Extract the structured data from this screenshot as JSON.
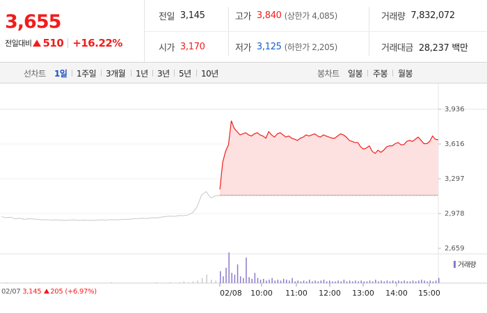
{
  "quote": {
    "price": "3,655",
    "change_label": "전일대비",
    "change_amount": "510",
    "change_rate": "+16.22%",
    "prev_close_label": "전일",
    "prev_close": "3,145",
    "open_label": "시가",
    "open": "3,170",
    "high_label": "고가",
    "high": "3,840",
    "upper_limit": "(상한가 4,085)",
    "low_label": "저가",
    "low": "3,125",
    "lower_limit": "(하한가 2,205)",
    "volume_label": "거래량",
    "volume": "7,832,072",
    "amount_label": "거래대금",
    "amount": "28,237 백만"
  },
  "toolbar": {
    "line_label": "선차트",
    "line_periods": [
      "1일",
      "1주일",
      "3개월",
      "1년",
      "3년",
      "5년",
      "10년"
    ],
    "active_period": "1일",
    "candle_label": "봉차트",
    "candle_periods": [
      "일봉",
      "주봉",
      "월봉"
    ]
  },
  "colors": {
    "up": "#f21c1c",
    "down": "#1361d0",
    "prev_day_line": "#c8c8c8",
    "today_fill": "#fde0e0",
    "volume": "#8a78c9"
  },
  "chart_data": {
    "type": "line",
    "ylim": [
      2659,
      3936
    ],
    "y_ticks": [
      "3,936",
      "3,616",
      "3,297",
      "2,978",
      "2,659"
    ],
    "x_tick_labels": [
      "02/08",
      "10:00",
      "11:00",
      "12:00",
      "13:00",
      "14:00",
      "15:00"
    ],
    "reference_price": 3145,
    "series": [
      {
        "x": [
          "09:00",
          "09:05",
          "09:10",
          "09:15",
          "09:20",
          "09:25",
          "09:30",
          "09:35",
          "09:40",
          "09:45",
          "09:50",
          "09:55",
          "10:00",
          "10:05",
          "10:10",
          "10:15",
          "10:20",
          "10:25",
          "10:30",
          "10:35",
          "10:40",
          "10:45",
          "10:50",
          "10:55",
          "11:00",
          "11:05",
          "11:10",
          "11:15",
          "11:20",
          "11:25",
          "11:30",
          "11:35",
          "11:40",
          "11:45",
          "11:50",
          "11:55",
          "12:00",
          "12:05",
          "12:10",
          "12:15",
          "12:20",
          "12:25",
          "12:30",
          "12:35",
          "12:40",
          "12:45",
          "12:50",
          "12:55",
          "13:00",
          "13:05",
          "13:10",
          "13:15",
          "13:20",
          "13:25",
          "13:30",
          "13:35",
          "13:40",
          "13:45",
          "13:50",
          "13:55",
          "14:00",
          "14:05",
          "14:10",
          "14:15",
          "14:20",
          "14:25",
          "14:30",
          "14:35",
          "14:40",
          "14:45",
          "14:50",
          "14:55",
          "15:00",
          "15:05",
          "15:10",
          "15:15",
          "15:20"
        ],
        "values": [
          3200,
          3450,
          3550,
          3610,
          3830,
          3760,
          3730,
          3700,
          3710,
          3720,
          3700,
          3690,
          3710,
          3720,
          3700,
          3690,
          3670,
          3730,
          3700,
          3680,
          3710,
          3720,
          3700,
          3680,
          3690,
          3670,
          3660,
          3650,
          3670,
          3680,
          3700,
          3690,
          3700,
          3710,
          3690,
          3680,
          3700,
          3690,
          3680,
          3670,
          3670,
          3690,
          3710,
          3700,
          3680,
          3650,
          3640,
          3630,
          3630,
          3590,
          3570,
          3580,
          3600,
          3550,
          3530,
          3560,
          3540,
          3560,
          3590,
          3600,
          3600,
          3620,
          3630,
          3610,
          3610,
          3640,
          3650,
          3640,
          3660,
          3680,
          3650,
          3620,
          3620,
          3640,
          3690,
          3660,
          3655
        ]
      }
    ]
  },
  "prev_day": {
    "date": "02/07",
    "close": "3,145",
    "change": "205",
    "rate": "(+6.97%)",
    "values": [
      2950,
      2940,
      2945,
      2930,
      2935,
      2925,
      2930,
      2928,
      2925,
      2920,
      2922,
      2918,
      2920,
      2918,
      2915,
      2918,
      2920,
      2915,
      2918,
      2916,
      2915,
      2918,
      2920,
      2918,
      2922,
      2920,
      2922,
      2925,
      2925,
      2930,
      2932,
      2935,
      2932,
      2940,
      2938,
      2945,
      2950,
      2955,
      2952,
      2960,
      2958,
      2965,
      2985,
      3040,
      3150,
      3180,
      3120,
      3140,
      3145
    ]
  },
  "volume": {
    "label": "거래량",
    "prev_day": [
      0,
      1,
      0,
      0,
      0,
      0,
      0,
      0,
      1,
      0,
      0,
      0,
      0,
      0,
      0,
      0,
      0,
      0,
      0,
      0,
      0,
      0,
      0,
      0,
      1,
      0,
      0,
      0,
      0,
      0,
      0,
      0,
      0,
      0,
      1,
      0,
      0,
      1,
      0,
      1,
      2,
      1,
      2,
      3,
      6,
      10,
      4,
      3,
      2
    ],
    "today": [
      14,
      8,
      18,
      36,
      12,
      10,
      22,
      8,
      6,
      30,
      7,
      5,
      12,
      6,
      4,
      5,
      3,
      4,
      6,
      3,
      4,
      3,
      5,
      4,
      3,
      6,
      2,
      3,
      2,
      3,
      2,
      4,
      2,
      3,
      2,
      3,
      4,
      2,
      3,
      2,
      2,
      3,
      2,
      4,
      2,
      3,
      2,
      3,
      2,
      3,
      2,
      2,
      3,
      2,
      4,
      2,
      3,
      2,
      3,
      2,
      3,
      2,
      3,
      2,
      3,
      2,
      2,
      3,
      2,
      3,
      4,
      3,
      2,
      3,
      2,
      3,
      6
    ]
  }
}
